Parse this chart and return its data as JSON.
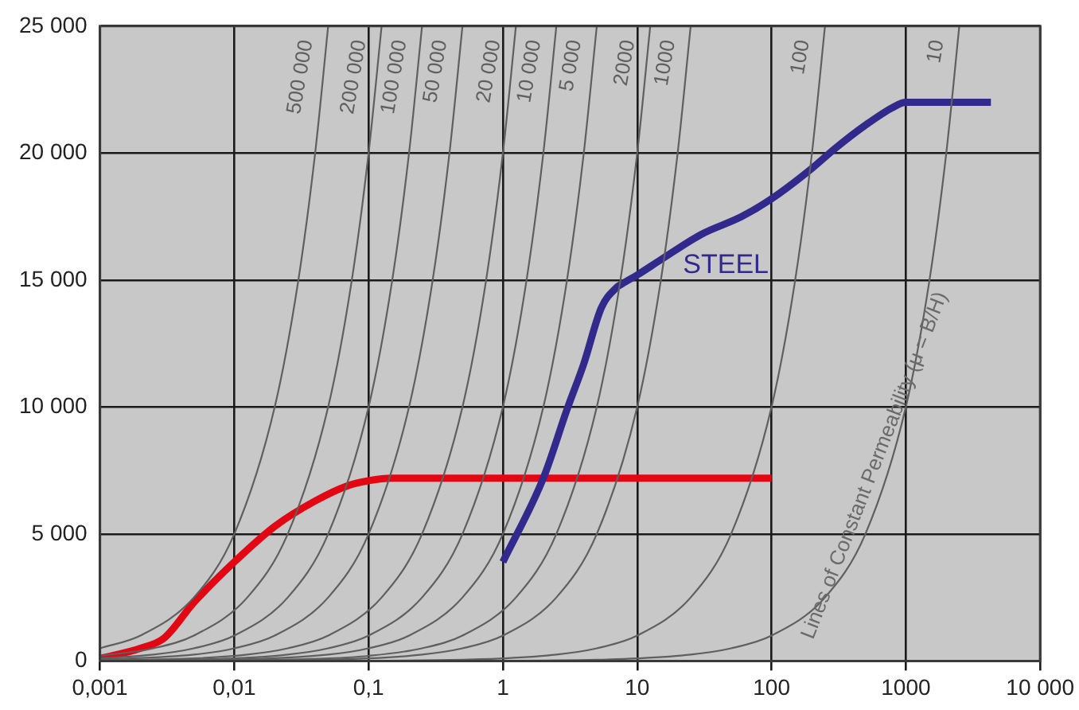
{
  "chart_data": {
    "type": "line",
    "legend": false,
    "grid": true,
    "marker": "none",
    "line_style": "solid",
    "xlim": [
      0.001,
      10000
    ],
    "ylim": [
      0,
      25000
    ],
    "log": "x",
    "xticks": [
      {
        "value": 0.001,
        "label": "0,001"
      },
      {
        "value": 0.01,
        "label": "0,01"
      },
      {
        "value": 0.1,
        "label": "0,1"
      },
      1,
      10,
      100,
      1000,
      {
        "value": 10000,
        "label": "10 000"
      }
    ],
    "yticks": [
      0,
      {
        "value": 5000,
        "label": "5 000"
      },
      {
        "value": 10000,
        "label": "10 000"
      },
      {
        "value": 15000,
        "label": "15 000"
      },
      {
        "value": 20000,
        "label": "20 000"
      },
      {
        "value": 25000,
        "label": "25 000"
      }
    ],
    "annotations": [
      "Lines of Constant Permeability (μ = B/H)"
    ],
    "series": [
      {
        "name": "500 000",
        "color": "#5f5f5f",
        "x": [
          0.001,
          0.002,
          0.005,
          0.01,
          0.02,
          0.03,
          0.04,
          0.05
        ],
        "values": [
          500,
          1000,
          2500,
          5000,
          10000,
          15000,
          20000,
          25000
        ]
      },
      {
        "name": "200 000",
        "color": "#5f5f5f",
        "x": [
          0.001,
          0.0025,
          0.005,
          0.0125,
          0.025,
          0.05,
          0.075,
          0.1,
          0.125
        ],
        "values": [
          200,
          500,
          1000,
          2500,
          5000,
          10000,
          15000,
          20000,
          25000
        ]
      },
      {
        "name": "100 000",
        "color": "#5f5f5f",
        "x": [
          0.001,
          0.0025,
          0.005,
          0.01,
          0.025,
          0.05,
          0.1,
          0.15,
          0.2,
          0.25
        ],
        "values": [
          100,
          250,
          500,
          1000,
          2500,
          5000,
          10000,
          15000,
          20000,
          25000
        ]
      },
      {
        "name": "50 000",
        "color": "#5f5f5f",
        "x": [
          0.001,
          0.005,
          0.01,
          0.02,
          0.05,
          0.1,
          0.2,
          0.3,
          0.4,
          0.5
        ],
        "values": [
          50,
          250,
          500,
          1000,
          2500,
          5000,
          10000,
          15000,
          20000,
          25000
        ]
      },
      {
        "name": "20 000",
        "color": "#5f5f5f",
        "x": [
          0.001,
          0.005,
          0.0125,
          0.025,
          0.05,
          0.125,
          0.25,
          0.5,
          0.75,
          1,
          1.25
        ],
        "values": [
          20,
          100,
          250,
          500,
          1000,
          2500,
          5000,
          10000,
          15000,
          20000,
          25000
        ]
      },
      {
        "name": "10 000",
        "color": "#5f5f5f",
        "x": [
          0.001,
          0.01,
          0.025,
          0.05,
          0.1,
          0.25,
          0.5,
          1,
          1.5,
          2,
          2.5
        ],
        "values": [
          10,
          100,
          250,
          500,
          1000,
          2500,
          5000,
          10000,
          15000,
          20000,
          25000
        ]
      },
      {
        "name": "5 000",
        "color": "#5f5f5f",
        "x": [
          0.001,
          0.01,
          0.05,
          0.1,
          0.2,
          0.5,
          1,
          2,
          3,
          4,
          5
        ],
        "values": [
          5,
          50,
          250,
          500,
          1000,
          2500,
          5000,
          10000,
          15000,
          20000,
          25000
        ]
      },
      {
        "name": "2000",
        "color": "#5f5f5f",
        "x": [
          0.001,
          0.01,
          0.05,
          0.1,
          0.25,
          0.5,
          1.25,
          2.5,
          5,
          7.5,
          10,
          12.5
        ],
        "values": [
          2,
          20,
          100,
          200,
          500,
          1000,
          2500,
          5000,
          10000,
          15000,
          20000,
          25000
        ]
      },
      {
        "name": "1000",
        "color": "#5f5f5f",
        "x": [
          0.001,
          0.01,
          0.1,
          0.25,
          0.5,
          1,
          2.5,
          5,
          10,
          15,
          20,
          25
        ],
        "values": [
          1,
          10,
          100,
          250,
          500,
          1000,
          2500,
          5000,
          10000,
          15000,
          20000,
          25000
        ]
      },
      {
        "name": "100",
        "color": "#5f5f5f",
        "x": [
          0.01,
          0.1,
          0.5,
          1,
          2.5,
          5,
          10,
          25,
          50,
          100,
          150,
          200,
          250
        ],
        "values": [
          1,
          10,
          50,
          100,
          250,
          500,
          1000,
          2500,
          5000,
          10000,
          15000,
          20000,
          25000
        ]
      },
      {
        "name": "10",
        "color": "#5f5f5f",
        "x": [
          0.1,
          1,
          5,
          10,
          25,
          50,
          100,
          250,
          500,
          1000,
          1500,
          2000,
          2500
        ],
        "values": [
          1,
          10,
          50,
          100,
          250,
          500,
          1000,
          2500,
          5000,
          10000,
          15000,
          20000,
          25000
        ]
      },
      {
        "name": "STEEL",
        "color": "#312a8c",
        "x": [
          1,
          2,
          3,
          4,
          5.4,
          7,
          8,
          10,
          15,
          30,
          60,
          100,
          200,
          300,
          500,
          800,
          1000,
          4300
        ],
        "values": [
          3900,
          7200,
          9900,
          11700,
          13900,
          14700,
          14900,
          15200,
          15800,
          16800,
          17500,
          18200,
          19400,
          20200,
          21100,
          21800,
          22000,
          22000
        ]
      },
      {
        "color": "#e30613",
        "x": [
          0.001,
          0.002,
          0.003,
          0.005,
          0.01,
          0.02,
          0.04,
          0.07,
          0.1,
          0.15,
          100
        ],
        "values": [
          100,
          500,
          900,
          2300,
          3900,
          5300,
          6300,
          6900,
          7100,
          7200,
          7200
        ]
      }
    ]
  }
}
